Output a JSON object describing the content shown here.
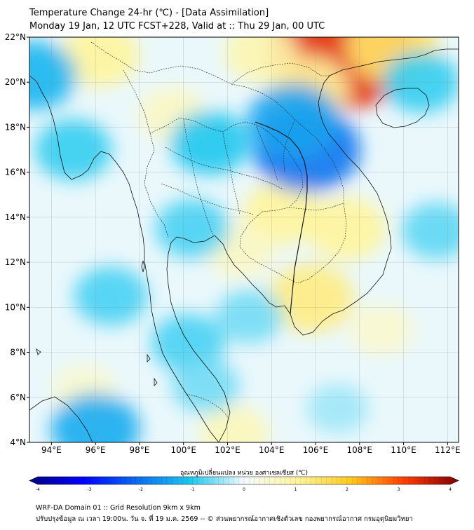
{
  "title": {
    "line1": "Temperature Change 24-hr (℃) - [Data Assimilation]",
    "line2": "Monday 19 Jan, 12 UTC FCST+228, Valid at :: Thu 29 Jan, 00 UTC"
  },
  "map": {
    "lat_range": [
      4,
      22
    ],
    "lon_range": [
      93,
      112.5
    ],
    "lat_ticks": [
      22,
      20,
      18,
      16,
      14,
      12,
      10,
      8,
      6,
      4
    ],
    "lat_labels": [
      "22°N",
      "20°N",
      "18°N",
      "16°N",
      "14°N",
      "12°N",
      "10°N",
      "8°N",
      "6°N",
      "4°N"
    ],
    "lon_ticks": [
      94,
      96,
      98,
      100,
      102,
      104,
      106,
      108,
      110,
      112
    ],
    "lon_labels": [
      "94°E",
      "96°E",
      "98°E",
      "100°E",
      "102°E",
      "104°E",
      "106°E",
      "108°E",
      "110°E",
      "112°E"
    ],
    "anomalies": [
      {
        "name": "warm-gulf-of-tonkin",
        "lon": 107.2,
        "lat": 21.4,
        "value": 3.2
      },
      {
        "name": "warm-guangxi",
        "lon": 109.5,
        "lat": 21.6,
        "value": 1.4
      },
      {
        "name": "warm-myanmar-north",
        "lon": 96.2,
        "lat": 21.2,
        "value": 1.0
      },
      {
        "name": "warm-laos-north",
        "lon": 103.5,
        "lat": 21.3,
        "value": 0.8
      },
      {
        "name": "warm-vietnam-north",
        "lon": 105.7,
        "lat": 19.7,
        "value": 1.0
      },
      {
        "name": "warm-cambodia-east",
        "lon": 107.4,
        "lat": 13.5,
        "value": 1.0
      },
      {
        "name": "warm-cambodia-west",
        "lon": 104.5,
        "lat": 14.2,
        "value": 1.0
      },
      {
        "name": "warm-mekong-delta",
        "lon": 105.8,
        "lat": 10.4,
        "value": 1.2
      },
      {
        "name": "warm-gulf-thailand",
        "lon": 102.6,
        "lat": 12.5,
        "value": 0.6
      },
      {
        "name": "warm-south-sea",
        "lon": 109.0,
        "lat": 9.0,
        "value": 0.5
      },
      {
        "name": "warm-malay-south",
        "lon": 102.3,
        "lat": 4.4,
        "value": 0.7
      },
      {
        "name": "warm-northern-thailand",
        "lon": 99.5,
        "lat": 18.6,
        "value": 0.6
      },
      {
        "name": "warm-andaman-south",
        "lon": 95.5,
        "lat": 6.3,
        "value": 0.5
      },
      {
        "name": "cool-laos-central",
        "lon": 105.6,
        "lat": 17.0,
        "value": -1.9
      },
      {
        "name": "cool-laos-north",
        "lon": 105.0,
        "lat": 18.3,
        "value": -1.4
      },
      {
        "name": "cool-west-bengal",
        "lon": 93.2,
        "lat": 20.3,
        "value": -1.2
      },
      {
        "name": "cool-myanmar-coast",
        "lon": 95.0,
        "lat": 17.0,
        "value": -0.9
      },
      {
        "name": "cool-thai-north-east",
        "lon": 101.2,
        "lat": 17.3,
        "value": -1.0
      },
      {
        "name": "cool-andaman-sea",
        "lon": 96.7,
        "lat": 10.5,
        "value": -0.8
      },
      {
        "name": "cool-andaman-south",
        "lon": 96.0,
        "lat": 4.6,
        "value": -1.3
      },
      {
        "name": "cool-thai-south",
        "lon": 100.2,
        "lat": 8.4,
        "value": -0.8
      },
      {
        "name": "cool-upper-gulf",
        "lon": 100.4,
        "lat": 13.5,
        "value": -0.8
      },
      {
        "name": "cool-gulf-south",
        "lon": 103.0,
        "lat": 9.6,
        "value": -0.6
      },
      {
        "name": "cool-hainan",
        "lon": 110.8,
        "lat": 20.0,
        "value": -0.9
      },
      {
        "name": "cool-east-sea",
        "lon": 111.5,
        "lat": 13.4,
        "value": -0.7
      },
      {
        "name": "cool-malay",
        "lon": 101.0,
        "lat": 6.5,
        "value": -0.6
      },
      {
        "name": "cool-southeast",
        "lon": 107.0,
        "lat": 5.5,
        "value": -0.4
      }
    ]
  },
  "colorbar": {
    "label": "อุณหภูมิเปลี่ยนแปลง หน่วย องศาเซลเซียส (℃)",
    "min": -4,
    "max": 4,
    "ticks": [
      "-4",
      "-3",
      "-2",
      "-1",
      "0",
      "1",
      "2",
      "3",
      "4"
    ]
  },
  "footer": {
    "line1": "WRF-DA Domain 01 :: Grid Resolution 9km x 9km",
    "line2": "ปรับปรุงข้อมูล ณ เวลา 19:00น. วัน จ. ที่ 19 ม.ค. 2569 -- © ส่วนพยากรณ์อากาศเชิงตัวเลข กองพยากรณ์อากาศ กรมอุตุนิยมวิทยา"
  }
}
